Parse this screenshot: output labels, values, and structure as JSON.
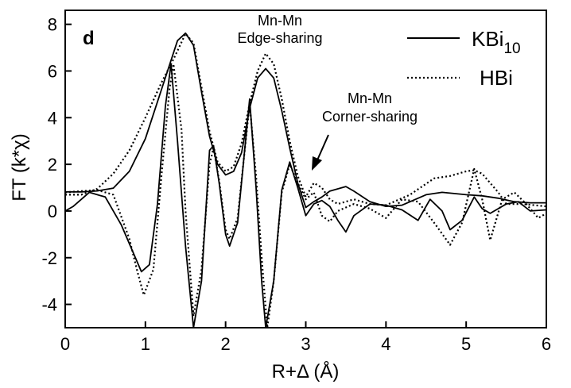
{
  "chart_data": {
    "type": "line",
    "panel_label": "d",
    "xlabel": "R+Δ (Å)",
    "ylabel": "FT (k*χ)",
    "xlim": [
      0,
      6
    ],
    "ylim": [
      -5,
      8.6
    ],
    "xticks": [
      0,
      1,
      2,
      3,
      4,
      5,
      6
    ],
    "yticks": [
      -4,
      -2,
      0,
      2,
      4,
      6,
      8
    ],
    "grid": false,
    "legend_position": "top-right",
    "annotations": [
      {
        "id": "edge",
        "line1": "Mn-Mn",
        "line2": "Edge-sharing"
      },
      {
        "id": "corner",
        "line1": "Mn-Mn",
        "line2": "Corner-sharing"
      }
    ],
    "series": [
      {
        "name": "KBi10",
        "legend_main": "KBi",
        "legend_sub": "10",
        "style": "solid",
        "magnitude": [
          [
            0.0,
            0.82
          ],
          [
            0.2,
            0.82
          ],
          [
            0.4,
            0.86
          ],
          [
            0.6,
            0.98
          ],
          [
            0.8,
            1.7
          ],
          [
            1.0,
            3.1
          ],
          [
            1.2,
            5.2
          ],
          [
            1.4,
            7.3
          ],
          [
            1.5,
            7.62
          ],
          [
            1.6,
            7.1
          ],
          [
            1.7,
            5.1
          ],
          [
            1.8,
            3.2
          ],
          [
            1.9,
            2.0
          ],
          [
            2.0,
            1.55
          ],
          [
            2.1,
            1.7
          ],
          [
            2.2,
            2.5
          ],
          [
            2.3,
            4.4
          ],
          [
            2.4,
            5.7
          ],
          [
            2.5,
            6.1
          ],
          [
            2.6,
            5.7
          ],
          [
            2.7,
            4.3
          ],
          [
            2.8,
            2.7
          ],
          [
            2.9,
            1.2
          ],
          [
            3.0,
            0.15
          ],
          [
            3.1,
            0.4
          ],
          [
            3.2,
            0.6
          ],
          [
            3.3,
            0.85
          ],
          [
            3.4,
            0.95
          ],
          [
            3.5,
            1.05
          ],
          [
            3.6,
            0.85
          ],
          [
            3.8,
            0.4
          ],
          [
            4.0,
            0.2
          ],
          [
            4.2,
            0.25
          ],
          [
            4.5,
            0.7
          ],
          [
            4.7,
            0.8
          ],
          [
            5.0,
            0.7
          ],
          [
            5.2,
            0.65
          ],
          [
            5.4,
            0.55
          ],
          [
            5.6,
            0.4
          ],
          [
            5.8,
            0.35
          ],
          [
            6.0,
            0.35
          ]
        ],
        "imaginary": [
          [
            0.0,
            0.0
          ],
          [
            0.1,
            0.2
          ],
          [
            0.3,
            0.8
          ],
          [
            0.5,
            0.6
          ],
          [
            0.7,
            -0.6
          ],
          [
            0.85,
            -1.8
          ],
          [
            0.95,
            -2.6
          ],
          [
            1.05,
            -2.3
          ],
          [
            1.15,
            0.3
          ],
          [
            1.25,
            4.5
          ],
          [
            1.32,
            6.3
          ],
          [
            1.4,
            3.0
          ],
          [
            1.5,
            -1.5
          ],
          [
            1.6,
            -5.0
          ],
          [
            1.7,
            -3.0
          ],
          [
            1.8,
            2.6
          ],
          [
            1.85,
            2.8
          ],
          [
            1.92,
            1.2
          ],
          [
            2.0,
            -1.0
          ],
          [
            2.05,
            -1.5
          ],
          [
            2.15,
            -0.5
          ],
          [
            2.3,
            4.8
          ],
          [
            2.38,
            1.0
          ],
          [
            2.45,
            -3.0
          ],
          [
            2.5,
            -5.0
          ],
          [
            2.6,
            -3.0
          ],
          [
            2.7,
            0.9
          ],
          [
            2.8,
            2.1
          ],
          [
            2.9,
            1.0
          ],
          [
            3.0,
            -0.2
          ],
          [
            3.1,
            0.3
          ],
          [
            3.2,
            0.45
          ],
          [
            3.3,
            0.2
          ],
          [
            3.4,
            -0.4
          ],
          [
            3.5,
            -0.9
          ],
          [
            3.6,
            -0.2
          ],
          [
            3.8,
            0.3
          ],
          [
            4.0,
            0.25
          ],
          [
            4.2,
            0.05
          ],
          [
            4.4,
            -0.4
          ],
          [
            4.55,
            0.5
          ],
          [
            4.7,
            0.0
          ],
          [
            4.8,
            -0.8
          ],
          [
            4.95,
            -0.4
          ],
          [
            5.1,
            0.6
          ],
          [
            5.2,
            0.1
          ],
          [
            5.3,
            -0.1
          ],
          [
            5.5,
            0.3
          ],
          [
            5.65,
            0.4
          ],
          [
            5.8,
            0.0
          ],
          [
            6.0,
            0.05
          ]
        ]
      },
      {
        "name": "HBi",
        "legend_main": "HBi",
        "legend_sub": "",
        "style": "dotted",
        "magnitude": [
          [
            0.0,
            0.7
          ],
          [
            0.2,
            0.7
          ],
          [
            0.4,
            0.95
          ],
          [
            0.6,
            1.6
          ],
          [
            0.8,
            2.6
          ],
          [
            1.0,
            4.0
          ],
          [
            1.2,
            5.5
          ],
          [
            1.35,
            6.5
          ],
          [
            1.5,
            7.6
          ],
          [
            1.6,
            7.2
          ],
          [
            1.7,
            5.3
          ],
          [
            1.8,
            3.4
          ],
          [
            1.9,
            2.1
          ],
          [
            2.0,
            1.7
          ],
          [
            2.1,
            1.9
          ],
          [
            2.2,
            2.9
          ],
          [
            2.3,
            4.6
          ],
          [
            2.4,
            6.0
          ],
          [
            2.5,
            6.75
          ],
          [
            2.6,
            6.3
          ],
          [
            2.7,
            4.8
          ],
          [
            2.8,
            3.0
          ],
          [
            2.9,
            1.5
          ],
          [
            3.0,
            0.6
          ],
          [
            3.1,
            1.2
          ],
          [
            3.2,
            1.0
          ],
          [
            3.3,
            0.5
          ],
          [
            3.4,
            0.3
          ],
          [
            3.6,
            0.5
          ],
          [
            3.8,
            0.3
          ],
          [
            4.0,
            0.25
          ],
          [
            4.3,
            0.7
          ],
          [
            4.6,
            1.4
          ],
          [
            4.8,
            1.5
          ],
          [
            5.0,
            1.7
          ],
          [
            5.1,
            1.75
          ],
          [
            5.2,
            1.6
          ],
          [
            5.4,
            0.8
          ],
          [
            5.5,
            0.3
          ],
          [
            5.7,
            0.3
          ],
          [
            6.0,
            0.2
          ]
        ],
        "imaginary": [
          [
            0.0,
            0.8
          ],
          [
            0.2,
            0.85
          ],
          [
            0.4,
            0.9
          ],
          [
            0.6,
            0.7
          ],
          [
            0.8,
            -1.2
          ],
          [
            0.9,
            -2.6
          ],
          [
            0.98,
            -3.6
          ],
          [
            1.1,
            -2.5
          ],
          [
            1.2,
            1.5
          ],
          [
            1.3,
            5.2
          ],
          [
            1.35,
            6.3
          ],
          [
            1.45,
            3.5
          ],
          [
            1.5,
            0.0
          ],
          [
            1.6,
            -4.5
          ],
          [
            1.7,
            -2.5
          ],
          [
            1.8,
            2.0
          ],
          [
            1.85,
            2.7
          ],
          [
            1.92,
            1.3
          ],
          [
            2.0,
            -0.8
          ],
          [
            2.05,
            -1.2
          ],
          [
            2.15,
            -0.3
          ],
          [
            2.3,
            4.6
          ],
          [
            2.38,
            1.5
          ],
          [
            2.45,
            -2.0
          ],
          [
            2.52,
            -5.0
          ],
          [
            2.6,
            -3.0
          ],
          [
            2.7,
            0.8
          ],
          [
            2.8,
            2.0
          ],
          [
            2.9,
            1.2
          ],
          [
            3.0,
            0.5
          ],
          [
            3.1,
            0.8
          ],
          [
            3.2,
            -0.2
          ],
          [
            3.3,
            -0.45
          ],
          [
            3.4,
            0.0
          ],
          [
            3.6,
            0.3
          ],
          [
            3.8,
            0.1
          ],
          [
            4.0,
            -0.3
          ],
          [
            4.2,
            0.5
          ],
          [
            4.4,
            0.4
          ],
          [
            4.6,
            -0.5
          ],
          [
            4.8,
            -1.45
          ],
          [
            4.95,
            -0.5
          ],
          [
            5.1,
            1.8
          ],
          [
            5.2,
            0.5
          ],
          [
            5.3,
            -1.25
          ],
          [
            5.45,
            0.5
          ],
          [
            5.6,
            0.8
          ],
          [
            5.75,
            0.3
          ],
          [
            5.9,
            -0.3
          ],
          [
            6.0,
            -0.1
          ]
        ]
      }
    ]
  }
}
